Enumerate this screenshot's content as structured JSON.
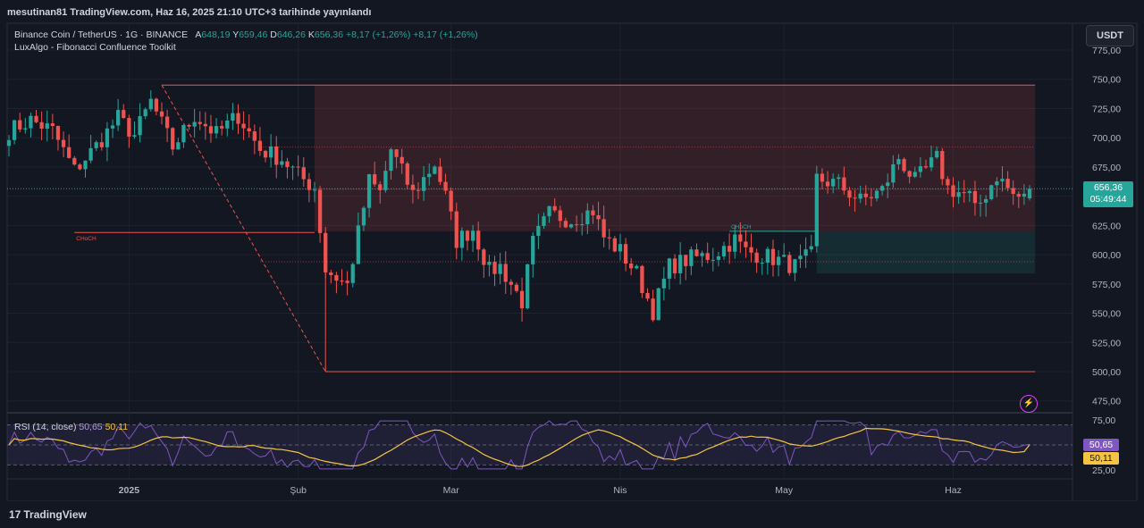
{
  "header": {
    "published": "mesutinan81 TradingView.com, Haz 16, 2025 21:10 UTC+3 tarihinde yayınlandı"
  },
  "symbol_legend": {
    "name": "Binance Coin / TetherUS · 1G · BINANCE",
    "open_label": "A",
    "open": "648,19",
    "high_label": "Y",
    "high": "659,46",
    "low_label": "D",
    "low": "646,26",
    "close_label": "K",
    "close": "656,36",
    "change": "+8,17 (+1,26%)",
    "change2": "+8,17 (+1,26%)"
  },
  "indicator_legend": "LuxAlgo - Fibonacci Confluence Toolkit",
  "rsi_legend": {
    "label": "RSI (14, close)",
    "rsi": "50,65",
    "ma": "50,11"
  },
  "currency_button": "USDT",
  "price_tag": {
    "price": "656,36",
    "countdown": "05:49:44"
  },
  "rsi_tags": {
    "rsi": "50,65",
    "ma": "50,11"
  },
  "footer_logo": "TradingView",
  "colors": {
    "up": "#26a69a",
    "down": "#ef5350",
    "rsi": "#7e57c2",
    "ma": "#f5c542",
    "zone": "#ef5350"
  },
  "chart_data": {
    "type": "candlestick",
    "title": "Binance Coin / TetherUS · 1G · BINANCE",
    "ylim": [
      475,
      775
    ],
    "y_ticks": [
      "775,00",
      "750,00",
      "725,00",
      "700,00",
      "675,00",
      "650,00",
      "625,00",
      "600,00",
      "575,00",
      "550,00",
      "525,00",
      "500,00",
      "475,00"
    ],
    "y_tick_values": [
      775,
      750,
      725,
      700,
      675,
      650,
      625,
      600,
      575,
      550,
      525,
      500,
      475
    ],
    "x_labels": [
      {
        "label": "2025",
        "index": 22
      },
      {
        "label": "Şub",
        "index": 53
      },
      {
        "label": "Mar",
        "index": 81
      },
      {
        "label": "Nis",
        "index": 112
      },
      {
        "label": "May",
        "index": 142
      },
      {
        "label": "Haz",
        "index": 173
      }
    ],
    "num_days": 188,
    "anchors": [
      [
        0,
        706,
        "c"
      ],
      [
        4,
        715,
        "c"
      ],
      [
        8,
        706,
        "c"
      ],
      [
        12,
        672,
        "c"
      ],
      [
        16,
        693,
        "c"
      ],
      [
        20,
        717,
        "c"
      ],
      [
        23,
        702,
        "c"
      ],
      [
        26,
        731,
        "c"
      ],
      [
        30,
        692,
        "c"
      ],
      [
        34,
        719,
        "c"
      ],
      [
        38,
        703,
        "c"
      ],
      [
        42,
        719,
        "c"
      ],
      [
        46,
        690,
        "c"
      ],
      [
        50,
        682,
        "c"
      ],
      [
        53,
        668,
        "c"
      ],
      [
        56,
        657,
        "c"
      ],
      [
        58,
        587,
        "c"
      ],
      [
        62,
        574,
        "c"
      ],
      [
        66,
        663,
        "c"
      ],
      [
        68,
        653,
        "c"
      ],
      [
        70,
        690,
        "c"
      ],
      [
        74,
        652,
        "c"
      ],
      [
        78,
        678,
        "c"
      ],
      [
        80,
        650,
        "c"
      ],
      [
        82,
        612,
        "c"
      ],
      [
        85,
        622,
        "c"
      ],
      [
        88,
        586,
        "c"
      ],
      [
        90,
        590,
        "c"
      ],
      [
        92,
        575,
        "c"
      ],
      [
        94,
        560,
        "c"
      ],
      [
        96,
        610,
        "c"
      ],
      [
        99,
        635,
        "c"
      ],
      [
        103,
        630,
        "c"
      ],
      [
        107,
        638,
        "c"
      ],
      [
        109,
        615,
        "c"
      ],
      [
        112,
        603,
        "c"
      ],
      [
        115,
        584,
        "c"
      ],
      [
        118,
        552,
        "c"
      ],
      [
        121,
        590,
        "c"
      ],
      [
        125,
        597,
        "c"
      ],
      [
        129,
        600,
        "c"
      ],
      [
        133,
        613,
        "c"
      ],
      [
        135,
        603,
        "c"
      ],
      [
        140,
        597,
        "c"
      ],
      [
        144,
        590,
        "c"
      ],
      [
        147,
        600,
        "c"
      ],
      [
        148,
        665,
        "c"
      ],
      [
        152,
        660,
        "c"
      ],
      [
        156,
        646,
        "c"
      ],
      [
        160,
        655,
        "c"
      ],
      [
        163,
        683,
        "c"
      ],
      [
        166,
        663,
        "c"
      ],
      [
        170,
        682,
        "c"
      ],
      [
        172,
        657,
        "c"
      ],
      [
        176,
        650,
        "c"
      ],
      [
        177,
        637,
        "c"
      ],
      [
        181,
        668,
        "c"
      ],
      [
        184,
        651,
        "c"
      ],
      [
        186,
        648,
        "c"
      ],
      [
        187,
        656,
        "c"
      ]
    ],
    "last_candle": {
      "open": 648.19,
      "high": 659.46,
      "low": 646.26,
      "close": 656.36
    },
    "annotations": [
      {
        "text": "CHoCH",
        "price": 619,
        "from": 12,
        "to": 56,
        "color": "#ef5350"
      },
      {
        "text": "CHoCH",
        "price": 620,
        "from": 132,
        "to": 148,
        "color": "#26a69a"
      }
    ],
    "fib_zone": {
      "from": 56,
      "to": 188,
      "top": 745,
      "bottom": 620
    },
    "fib_box": {
      "from": 28,
      "to": 188,
      "top": 745,
      "bottom": 500
    },
    "green_zone": {
      "from": 148,
      "to": 188,
      "top": 620,
      "bottom": 584
    },
    "dotted_levels": [
      692,
      656,
      594
    ],
    "rsi": {
      "ylim": [
        20,
        80
      ],
      "y_ticks": [
        "75,00",
        "50,00",
        "25,00"
      ],
      "y_tick_values": [
        75,
        50,
        25
      ],
      "bands": [
        70,
        30
      ],
      "last_rsi": 50.65,
      "last_ma": 50.11
    }
  }
}
